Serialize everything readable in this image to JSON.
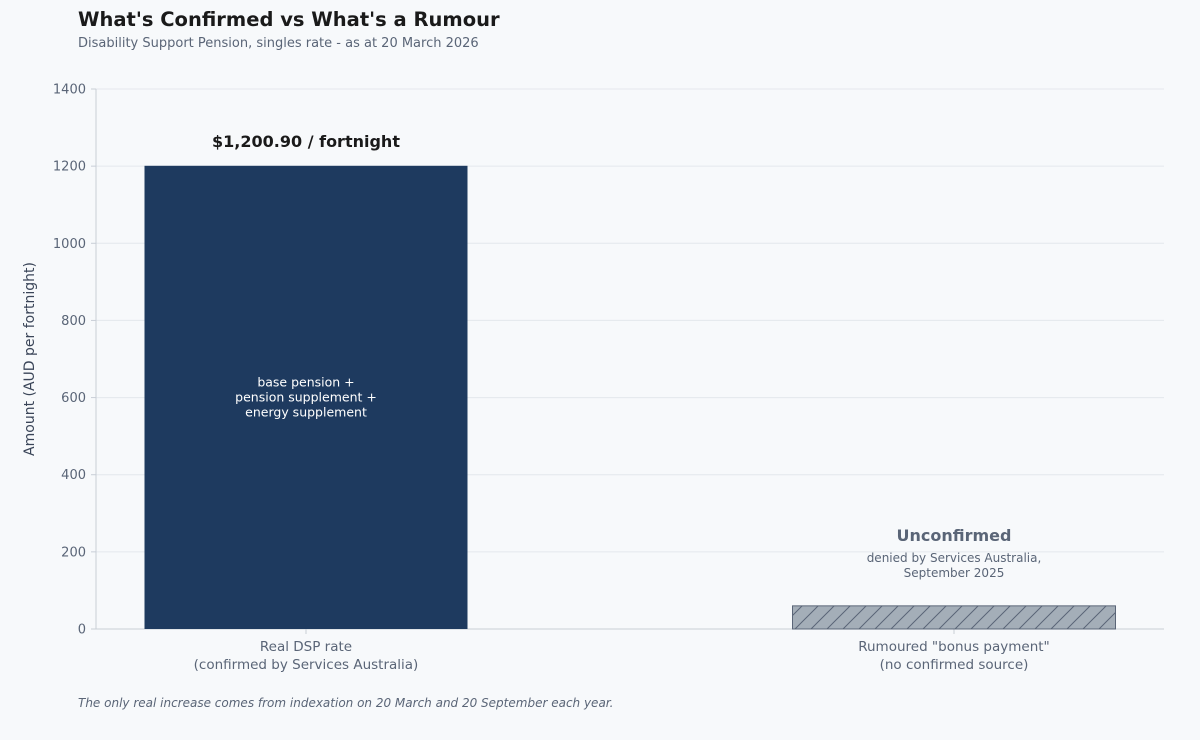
{
  "header": {
    "title": "What's Confirmed vs What's a Rumour",
    "subtitle": "Disability Support Pension, singles rate - as at 20 March 2026"
  },
  "footnote": "The only real increase comes from indexation on 20 March and 20 September each year.",
  "colors": {
    "confirmed_bar": "#1e3a5f",
    "rumour_bar": "#a4aeb8",
    "rumour_hatch": "#5a6577",
    "grid": "#e4e8ec",
    "axis": "#c8ced6"
  },
  "chart_data": {
    "type": "bar",
    "title": "What's Confirmed vs What's a Rumour",
    "subtitle": "Disability Support Pension, singles rate - as at 20 March 2026",
    "xlabel": "",
    "ylabel": "Amount (AUD per fortnight)",
    "ylim": [
      0,
      1400
    ],
    "yticks": [
      0,
      200,
      400,
      600,
      800,
      1000,
      1200,
      1400
    ],
    "grid": true,
    "categories": [
      [
        "Real DSP rate",
        "(confirmed by Services Australia)"
      ],
      [
        "Rumoured \"bonus payment\"",
        "(no confirmed source)"
      ]
    ],
    "values": [
      1200.9,
      60
    ],
    "annotations": {
      "confirmed_value_label": "$1,200.90 / fortnight",
      "confirmed_inner_label": [
        "base pension +",
        "pension supplement +",
        "energy supplement"
      ],
      "rumour_title": "Unconfirmed",
      "rumour_sub": [
        "denied by Services Australia,",
        "September 2025"
      ]
    }
  }
}
